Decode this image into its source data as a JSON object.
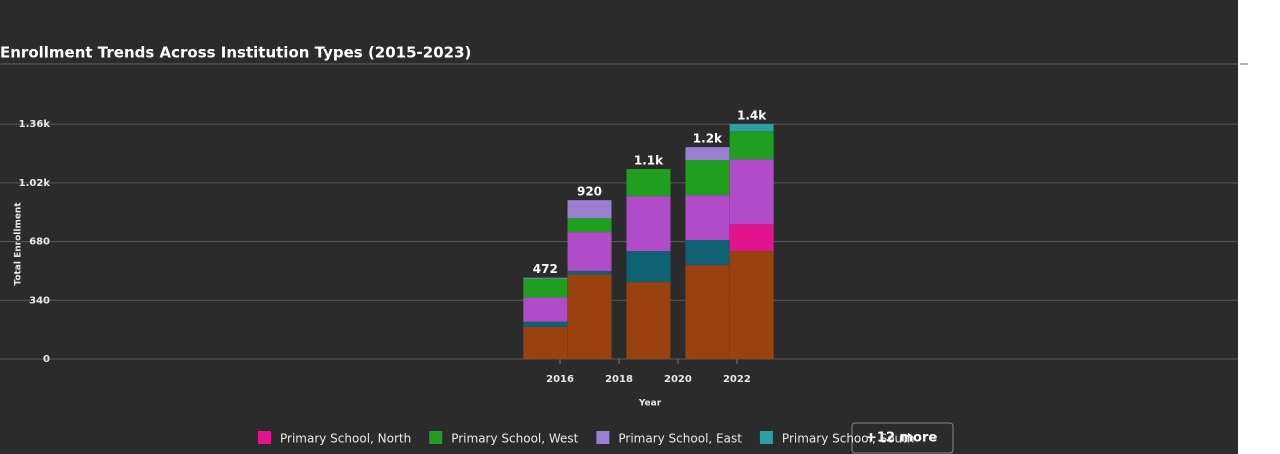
{
  "chart_data": {
    "type": "bar",
    "stacked": true,
    "title": "Enrollment Trends Across Institution Types (2015-2023)",
    "x_label": "Year",
    "y_label": "Total Enrollment",
    "x": [
      2015.5,
      2017,
      2019,
      2021,
      2022.5
    ],
    "series": [
      {
        "name": null,
        "color": "#9a420f",
        "values": [
          186,
          490,
          445,
          544,
          625
        ]
      },
      {
        "name": null,
        "color": "#0f6272",
        "values": [
          30,
          20,
          180,
          145,
          0
        ]
      },
      {
        "name": "Primary School, North",
        "color": "#e0148c",
        "values": [
          0,
          0,
          0,
          0,
          156
        ]
      },
      {
        "name": null,
        "color": "#b04cc8",
        "values": [
          140,
          225,
          318,
          260,
          376
        ]
      },
      {
        "name": "Primary School, West",
        "color": "#1f9e1f",
        "values": [
          110,
          80,
          157,
          203,
          162
        ]
      },
      {
        "name": "Primary School, East",
        "color": "#9a7fd1",
        "values": [
          4,
          105,
          0,
          75,
          0
        ]
      },
      {
        "name": "Primary School, South",
        "color": "#2ca0a8",
        "values": [
          2,
          0,
          0,
          0,
          41
        ]
      }
    ],
    "totals": [
      472,
      920,
      1100,
      1227,
      1360
    ],
    "total_labels": [
      "472",
      "920",
      "1.1k",
      "1.2k",
      "1.4k"
    ],
    "xlim": [
      1997,
      2039
    ],
    "xticks": [
      2016,
      2018,
      2020,
      2022
    ],
    "ylim": [
      0,
      1500
    ],
    "yticks": [
      0,
      340,
      680,
      {
        "value": 1020,
        "label": "1.02k"
      },
      {
        "value": 1360,
        "label": "1.36k"
      }
    ],
    "grid": true,
    "legend_more": "+12 more"
  }
}
